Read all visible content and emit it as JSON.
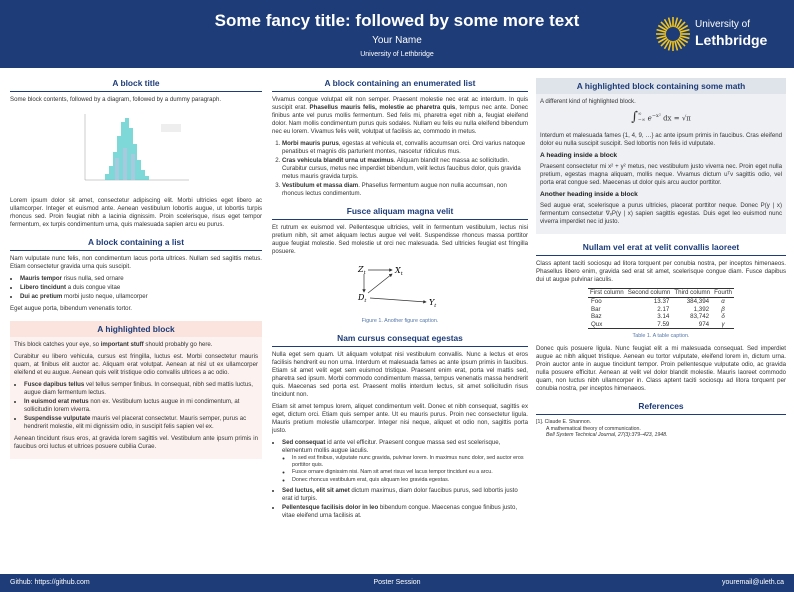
{
  "header": {
    "title": "Some fancy title: followed by some more text",
    "author": "Your Name",
    "affiliation": "University of Lethbridge",
    "logo_line1": "University of",
    "logo_line2": "Lethbridge"
  },
  "col1": {
    "block1": {
      "title": "A block title",
      "intro": "Some block contents, followed by a diagram, followed by a dummy paragraph.",
      "text": "Lorem ipsum dolor sit amet, consectetur adipiscing elit. Morbi ultricies eget libero ac ullamcorper. Integer et euismod ante. Aenean vestibulum lobortis augue, ut lobortis turpis rhoncus sed. Proin feugiat nibh a lacinia dignissim. Proin scelerisque, risus eget tempor fermentum, ex turpis condimentum urna, quis malesuada sapien arcu eu purus."
    },
    "block2": {
      "title": "A block containing a list",
      "intro": "Nam vulputate nunc felis, non condimentum lacus porta ultrices. Nullam sed sagittis metus. Etiam consectetur gravida urna quis suscipit.",
      "items": [
        {
          "lead": "Mauris tempor",
          "text": " risus nulla, sed ornare"
        },
        {
          "lead": "Libero tincidunt",
          "text": " a duis congue vitae"
        },
        {
          "lead": "Dui ac pretium",
          "text": " morbi justo neque, ullamcorper"
        }
      ],
      "outro": "Eget augue porta, bibendum venenatis tortor."
    },
    "block3": {
      "title": "A highlighted block",
      "p1": {
        "before": "This block catches your eye, so ",
        "bold": "important stuff",
        "after": " should probably go here."
      },
      "p2": "Curabitur eu libero vehicula, cursus est fringilla, luctus est. Morbi consectetur mauris quam, at finibus elit auctor ac. Aliquam erat volutpat. Aenean at nisl ut ex ullamcorper eleifend et eu augue. Aenean quis velit tristique odio convallis ultrices a ac odio.",
      "items": [
        {
          "lead": "Fusce dapibus tellus",
          "text": " vel tellus semper finibus. In consequat, nibh sed mattis luctus, augue diam fermentum lectus."
        },
        {
          "lead": "In euismod erat metus",
          "text": " non ex. Vestibulum luctus augue in mi condimentum, at sollicitudin lorem viverra."
        },
        {
          "lead": "Suspendisse vulputate",
          "text": " mauris vel placerat consectetur. Mauris semper, purus ac hendrerit molestie, elit mi dignissim odio, in suscipit felis sapien vel ex."
        }
      ],
      "p3": "Aenean tincidunt risus eros, at gravida lorem sagittis vel. Vestibulum ante ipsum primis in faucibus orci luctus et ultrices posuere cubilia Curae."
    }
  },
  "col2": {
    "block1": {
      "title": "A block containing an enumerated list",
      "p1": {
        "before": "Vivamus congue volutpat elit non semper. Praesent molestie nec erat ac interdum. In quis suscipit erat. ",
        "bold": "Phasellus mauris felis, molestie ac pharetra quis",
        "after": ", tempus nec ante. Donec finibus ante vel purus mollis fermentum. Sed felis mi, pharetra eget nibh a, feugiat eleifend dolor. Nam mollis condimentum purus quis sodales. Nullam eu felis eu nulla eleifend bibendum nec eu lorem. Vivamus felis velit, volutpat ut facilisis ac, commodo in metus."
      },
      "items": [
        {
          "lead": "Morbi mauris purus",
          "text": ", egestas at vehicula et, convallis accumsan orci. Orci varius natoque penatibus et magnis dis parturient montes, nascetur ridiculus mus."
        },
        {
          "lead": "Cras vehicula blandit urna ut maximus",
          "text": ". Aliquam blandit nec massa ac sollicitudin. Curabitur cursus, metus nec imperdiet bibendum, velit lectus faucibus dolor, quis gravida metus mauris gravida turpis."
        },
        {
          "lead": "Vestibulum et massa diam",
          "text": ". Phasellus fermentum augue non nulla accumsan, non rhoncus lectus condimentum."
        }
      ]
    },
    "block2": {
      "title": "Fusce aliquam magna velit",
      "text": "Et rutrum ex euismod vel. Pellentesque ultricies, velit in fermentum vestibulum, lectus nisi pretium nibh, sit amet aliquam lectus augue vel velit. Suspendisse rhoncus massa porttitor augue feugiat molestie. Sed molestie ut orci nec malesuada. Sed ultricies feugiat est fringilla posuere.",
      "nodes": [
        {
          "main": "Z",
          "sub": "t"
        },
        {
          "main": "X",
          "sub": "t"
        },
        {
          "main": "D",
          "sub": "t"
        },
        {
          "main": "Y",
          "sub": "t"
        }
      ],
      "caption": "Figure 1. Another figure caption."
    },
    "block3": {
      "title": "Nam cursus consequat egestas",
      "p1": "Nulla eget sem quam. Ut aliquam volutpat nisi vestibulum convallis. Nunc a lectus et eros facilisis hendrerit eu non urna. Interdum et malesuada fames ac ante ipsum primis in faucibus. Etiam sit amet velit eget sem euismod tristique. Praesent enim erat, porta vel mattis sed, pharetra sed ipsum. Morbi commodo condimentum massa, tempus venenatis massa hendrerit quis. Maecenas sed porta est. Praesent mollis interdum lectus, sit amet sollicitudin risus tincidunt non.",
      "p2": "Etiam sit amet tempus lorem, aliquet condimentum velit. Donec et nibh consequat, sagittis ex eget, dictum orci. Etiam quis semper ante. Ut eu mauris purus. Proin nec consectetur ligula. Mauris pretium molestie ullamcorper. Integer nisi neque, aliquet et odio non, sagittis porta justo.",
      "items": [
        {
          "lead": "Sed consequat",
          "text": " id ante vel efficitur. Praesent congue massa sed est scelerisque, elementum mollis augue iaculis.",
          "sub": [
            "In sed est finibus, vulputate nunc gravida, pulvinar lorem. In maximus nunc dolor, sed auctor eros porttitor quis.",
            "Fusce ornare dignissim nisi. Nam sit amet risus vel lacus tempor tincidunt eu a arcu.",
            "Donec rhoncus vestibulum erat, quis aliquam leo gravida egestas."
          ]
        },
        {
          "lead": "Sed luctus, elit sit amet",
          "text": " dictum maximus, diam dolor faucibus purus, sed lobortis justo erat id turpis."
        },
        {
          "lead": "Pellentesque facilisis dolor in leo",
          "text": " bibendum congue. Maecenas congue finibus justo, vitae eleifend urna facilisis at."
        }
      ]
    }
  },
  "col3": {
    "block1": {
      "title": "A highlighted block containing some math",
      "intro": "A different kind of highlighted block.",
      "math": {
        "integral": "∫",
        "upper": "∞",
        "lower": "−∞",
        "body": "e",
        "exponent": "−x²",
        "rest": " dx = √π"
      },
      "p1": "Interdum et malesuada fames {1, 4, 9, …} ac ante ipsum primis in faucibus. Cras eleifend dolor eu nulla suscipit suscipit. Sed lobortis non felis id vulputate.",
      "h1": "A heading inside a block",
      "p2": "Praesent consectetur mi x² + y² metus, nec vestibulum justo viverra nec. Proin eget nulla pretium, egestas magna aliquam, mollis neque. Vivamus dictum uᵀv sagittis odio, vel porta erat congue sed. Maecenas ut dolor quis arcu auctor porttitor.",
      "h2": "Another heading inside a block",
      "p3": "Sed augue erat, scelerisque a purus ultricies, placerat porttitor neque. Donec P(y | x) fermentum consectetur ∇ₓP(y | x) sapien sagittis egestas. Duis eget leo euismod nunc viverra imperdiet nec id justo."
    },
    "block2": {
      "title": "Nullam vel erat at velit convallis laoreet",
      "p1": "Class aptent taciti sociosqu ad litora torquent per conubia nostra, per inceptos himenaeos. Phasellus libero enim, gravida sed erat sit amet, scelerisque congue diam. Fusce dapibus dui ut augue pulvinar iaculis.",
      "table": {
        "header": [
          "First column",
          "Second column",
          "Third column",
          "Fourth"
        ],
        "rows": [
          [
            "Foo",
            "13.37",
            "384,394",
            "α"
          ],
          [
            "Bar",
            "2.17",
            "1,392",
            "β"
          ],
          [
            "Baz",
            "3.14",
            "83,742",
            "δ"
          ],
          [
            "Qux",
            "7.59",
            "974",
            "γ"
          ]
        ]
      },
      "caption": "Table 1. A table caption.",
      "p2": "Donec quis posuere ligula. Nunc feugiat elit a mi malesuada consequat. Sed imperdiet augue ac nibh aliquet tristique. Aenean eu tortor vulputate, eleifend lorem in, dictum urna. Proin auctor ante in augue tincidunt tempor. Proin pellentesque vulputate odio, ac gravida nulla posuere efficitur. Aenean at velit vel dolor blandit molestie. Mauris laoreet commodo quam, non luctus nibh ullamcorper in. Class aptent taciti sociosqu ad litora torquent per conubia nostra, per inceptos himenaeos."
    },
    "block3": {
      "title": "References",
      "ref": {
        "label": "[1].",
        "author": "Claude E. Shannon.",
        "title": "A mathematical theory of communication.",
        "venue": "Bell System Technical Journal, 27(3):379–423, 1948."
      }
    }
  },
  "footer": {
    "left": "Github: https://github.com",
    "center": "Poster Session",
    "right": "youremail@uleth.ca"
  }
}
